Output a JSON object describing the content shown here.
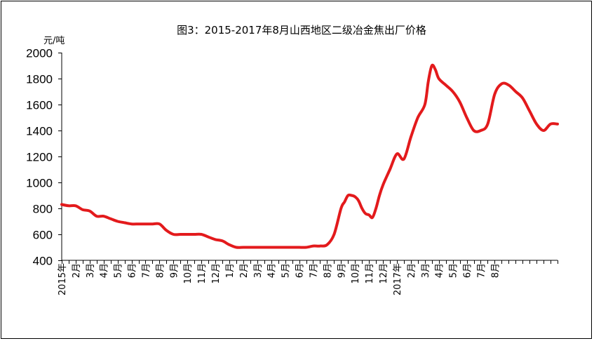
{
  "chart_data": {
    "type": "line",
    "title": "图3：2015-2017年8月山西地区二级冶金焦出厂价格",
    "ylabel": "元/吨",
    "xlabel": "",
    "ylim": [
      400,
      2000
    ],
    "yticks": [
      400,
      600,
      800,
      1000,
      1200,
      1400,
      1600,
      1800,
      2000
    ],
    "xlim": [
      0,
      35.5
    ],
    "grid": false,
    "legend": "none",
    "line_color": "#e31a1c",
    "x_tick_labels": [
      {
        "x": 0,
        "label": "2015年"
      },
      {
        "x": 1,
        "label": "2月"
      },
      {
        "x": 2,
        "label": "3月"
      },
      {
        "x": 3,
        "label": "4月"
      },
      {
        "x": 4,
        "label": "5月"
      },
      {
        "x": 5,
        "label": "6月"
      },
      {
        "x": 6,
        "label": "7月"
      },
      {
        "x": 7,
        "label": "8月"
      },
      {
        "x": 8,
        "label": "9月"
      },
      {
        "x": 9,
        "label": "10月"
      },
      {
        "x": 10,
        "label": "11月"
      },
      {
        "x": 11,
        "label": "12月"
      },
      {
        "x": 12,
        "label": "1月"
      },
      {
        "x": 13,
        "label": "2月"
      },
      {
        "x": 14,
        "label": "3月"
      },
      {
        "x": 15,
        "label": "4月"
      },
      {
        "x": 16,
        "label": "5月"
      },
      {
        "x": 17,
        "label": "6月"
      },
      {
        "x": 18,
        "label": "7月"
      },
      {
        "x": 19,
        "label": "8月"
      },
      {
        "x": 20,
        "label": "9月"
      },
      {
        "x": 21,
        "label": "10月"
      },
      {
        "x": 22,
        "label": "11月"
      },
      {
        "x": 23,
        "label": "12月"
      },
      {
        "x": 24,
        "label": "2017年"
      },
      {
        "x": 25,
        "label": "2月"
      },
      {
        "x": 26,
        "label": "3月"
      },
      {
        "x": 27,
        "label": "4月"
      },
      {
        "x": 28,
        "label": "5月"
      },
      {
        "x": 29,
        "label": "6月"
      },
      {
        "x": 30,
        "label": "7月"
      },
      {
        "x": 31,
        "label": "8月"
      }
    ],
    "series": [
      {
        "x": [
          0,
          0.5,
          1,
          1.5,
          2,
          2.5,
          3,
          3.5,
          4,
          4.5,
          5,
          5.5,
          6,
          6.5,
          7,
          7.5,
          8,
          8.5,
          9,
          9.5,
          10,
          10.5,
          11,
          11.5,
          12,
          12.5,
          13,
          13.5,
          14,
          14.5,
          15,
          15.25,
          15.5,
          15.75,
          16,
          16.5,
          17,
          17.5,
          18,
          18.5,
          19,
          19.5,
          20,
          20.25,
          20.5,
          20.75,
          21,
          21.25,
          21.5,
          21.75,
          22,
          22.25,
          22.5,
          22.75,
          23,
          23.5,
          24,
          24.5,
          25,
          25.5,
          26,
          26.25,
          26.5,
          26.75,
          27,
          27.5,
          28,
          28.5,
          29,
          29.5,
          30,
          30.5,
          31,
          31.5,
          32,
          32.5,
          33,
          33.5,
          34,
          34.5,
          35,
          35.5
        ],
        "values": [
          830,
          820,
          820,
          790,
          780,
          740,
          740,
          720,
          700,
          690,
          680,
          680,
          680,
          680,
          680,
          630,
          600,
          600,
          600,
          600,
          600,
          580,
          560,
          550,
          520,
          500,
          500,
          500,
          500,
          500,
          500,
          500,
          500,
          500,
          500,
          500,
          500,
          500,
          510,
          510,
          520,
          600,
          800,
          850,
          900,
          900,
          890,
          860,
          800,
          760,
          750,
          730,
          800,
          900,
          980,
          1100,
          1220,
          1180,
          1350,
          1500,
          1600,
          1780,
          1900,
          1870,
          1800,
          1750,
          1700,
          1620,
          1500,
          1400,
          1400,
          1450,
          1680,
          1760,
          1750,
          1700,
          1650,
          1550,
          1450,
          1400,
          1450,
          1450
        ]
      }
    ]
  }
}
